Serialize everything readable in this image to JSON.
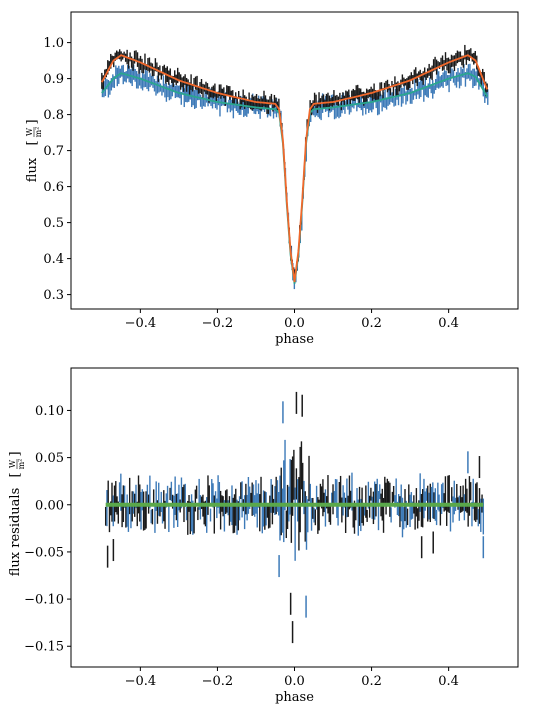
{
  "chart_data": [
    {
      "type": "line",
      "xlabel": "phase",
      "ylabel": "flux",
      "ylabel_unit_num": "W",
      "ylabel_unit_den": "m²",
      "xlim": [
        -0.58,
        0.58
      ],
      "ylim": [
        0.26,
        1.085
      ],
      "xticks": [
        -0.4,
        -0.2,
        0.0,
        0.2,
        0.4
      ],
      "xtick_labels": [
        "−0.4",
        "−0.2",
        "0.0",
        "0.2",
        "0.4"
      ],
      "yticks": [
        0.3,
        0.4,
        0.5,
        0.6,
        0.7,
        0.8,
        0.9,
        1.0
      ],
      "ytick_labels": [
        "0.3",
        "0.4",
        "0.5",
        "0.6",
        "0.7",
        "0.8",
        "0.9",
        "1.0"
      ],
      "grid": false,
      "colors": {
        "data_a": "#1a1a1a",
        "data_b": "#3d7ab8",
        "model_a": "#f0682b",
        "model_b": "#2aa68f"
      },
      "series": [
        {
          "x": [
            -0.5,
            -0.47,
            -0.45,
            -0.4,
            -0.3,
            -0.2,
            -0.1,
            -0.05,
            -0.04,
            -0.03,
            -0.02,
            -0.01,
            0.0,
            0.01,
            0.02,
            0.03,
            0.04,
            0.05,
            0.1,
            0.2,
            0.3,
            0.4,
            0.45,
            0.47,
            0.5
          ],
          "values": [
            0.89,
            0.95,
            0.965,
            0.945,
            0.895,
            0.86,
            0.835,
            0.83,
            0.815,
            0.73,
            0.56,
            0.42,
            0.335,
            0.42,
            0.56,
            0.73,
            0.815,
            0.83,
            0.835,
            0.86,
            0.895,
            0.945,
            0.965,
            0.95,
            0.87
          ]
        },
        {
          "x": [
            -0.5,
            -0.47,
            -0.45,
            -0.4,
            -0.3,
            -0.2,
            -0.1,
            -0.05,
            -0.04,
            -0.03,
            -0.02,
            -0.01,
            0.0,
            0.01,
            0.02,
            0.03,
            0.04,
            0.05,
            0.1,
            0.2,
            0.3,
            0.4,
            0.45,
            0.47,
            0.5
          ],
          "values": [
            0.86,
            0.9,
            0.915,
            0.9,
            0.86,
            0.835,
            0.82,
            0.815,
            0.805,
            0.72,
            0.55,
            0.41,
            0.33,
            0.41,
            0.55,
            0.72,
            0.805,
            0.815,
            0.82,
            0.835,
            0.86,
            0.9,
            0.915,
            0.905,
            0.85
          ]
        }
      ]
    },
    {
      "type": "scatter",
      "xlabel": "phase",
      "ylabel": "flux residuals",
      "ylabel_unit_num": "W",
      "ylabel_unit_den": "m²",
      "xlim": [
        -0.58,
        0.58
      ],
      "ylim": [
        -0.172,
        0.145
      ],
      "xticks": [
        -0.4,
        -0.2,
        0.0,
        0.2,
        0.4
      ],
      "xtick_labels": [
        "−0.4",
        "−0.2",
        "0.0",
        "0.2",
        "0.4"
      ],
      "yticks": [
        -0.15,
        -0.1,
        -0.05,
        0.0,
        0.05,
        0.1
      ],
      "ytick_labels": [
        "−0.15",
        "−0.10",
        "−0.05",
        "0.00",
        "0.05",
        "0.10"
      ],
      "grid": false,
      "colors": {
        "data_a": "#1a1a1a",
        "data_b": "#3d7ab8",
        "zero_line": "#5aa84a"
      },
      "zero_line": {
        "x": [
          -0.49,
          0.49
        ],
        "values": [
          0.0,
          0.0
        ]
      },
      "outliers": [
        {
          "x": -0.03,
          "y": 0.098,
          "series": "b"
        },
        {
          "x": -0.01,
          "y": -0.105,
          "series": "a"
        },
        {
          "x": -0.005,
          "y": -0.135,
          "series": "a"
        },
        {
          "x": 0.005,
          "y": 0.108,
          "series": "a"
        },
        {
          "x": 0.02,
          "y": 0.105,
          "series": "a"
        },
        {
          "x": 0.03,
          "y": -0.108,
          "series": "b"
        },
        {
          "x": -0.04,
          "y": -0.065,
          "series": "b"
        },
        {
          "x": -0.485,
          "y": -0.055,
          "series": "a"
        },
        {
          "x": -0.47,
          "y": -0.048,
          "series": "a"
        },
        {
          "x": 0.45,
          "y": 0.045,
          "series": "b"
        },
        {
          "x": 0.48,
          "y": 0.04,
          "series": "a"
        },
        {
          "x": 0.49,
          "y": -0.045,
          "series": "b"
        },
        {
          "x": 0.33,
          "y": -0.045,
          "series": "a"
        },
        {
          "x": 0.36,
          "y": -0.04,
          "series": "a"
        }
      ]
    }
  ]
}
